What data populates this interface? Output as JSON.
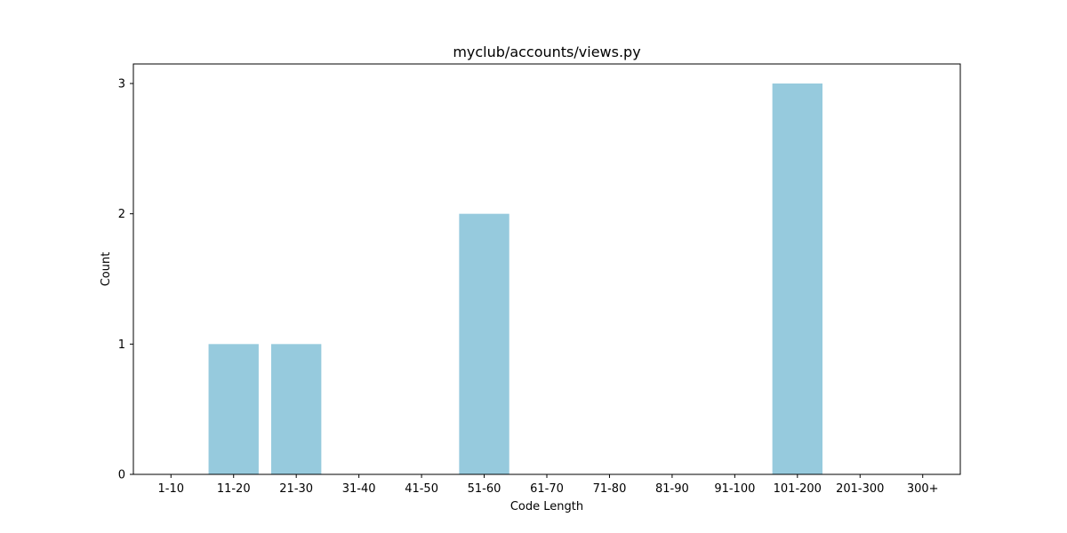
{
  "chart_data": {
    "type": "bar",
    "title": "myclub/accounts/views.py",
    "xlabel": "Code Length",
    "ylabel": "Count",
    "categories": [
      "1-10",
      "11-20",
      "21-30",
      "31-40",
      "41-50",
      "51-60",
      "61-70",
      "71-80",
      "81-90",
      "91-100",
      "101-200",
      "201-300",
      "300+"
    ],
    "values": [
      0,
      1,
      1,
      0,
      0,
      2,
      0,
      0,
      0,
      0,
      3,
      0,
      0
    ],
    "yticks": [
      0,
      1,
      2,
      3
    ],
    "ylim": [
      0,
      3.15
    ],
    "grid": false,
    "bar_color": "#96cadd"
  }
}
